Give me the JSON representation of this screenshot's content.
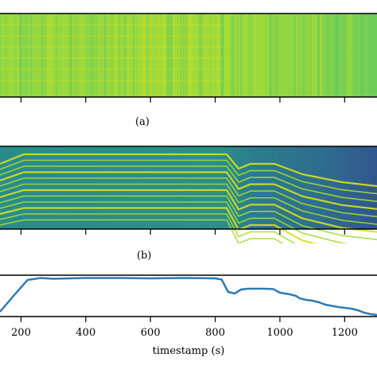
{
  "panels": [
    {
      "id": "a",
      "caption": "(a)",
      "type": "heatmap",
      "colormap": "viridis"
    },
    {
      "id": "b",
      "caption": "(b)",
      "type": "heatmap",
      "colormap": "viridis"
    }
  ],
  "chart_data": {
    "type": "line",
    "xlabel": "timestamp (s)",
    "xticks": [
      200,
      400,
      600,
      800,
      1000,
      1200
    ],
    "xlim": [
      135,
      1300
    ],
    "ylim": [
      0,
      1
    ],
    "color": "#2f7ab5",
    "x": [
      135,
      180,
      220,
      260,
      300,
      400,
      500,
      600,
      700,
      800,
      820,
      840,
      860,
      880,
      900,
      950,
      980,
      1000,
      1030,
      1050,
      1060,
      1080,
      1100,
      1120,
      1140,
      1160,
      1180,
      1200,
      1220,
      1240,
      1260,
      1280,
      1300
    ],
    "y": [
      0.12,
      0.55,
      0.92,
      0.97,
      0.95,
      0.97,
      0.97,
      0.96,
      0.97,
      0.96,
      0.93,
      0.62,
      0.58,
      0.68,
      0.7,
      0.7,
      0.69,
      0.6,
      0.56,
      0.52,
      0.46,
      0.42,
      0.4,
      0.36,
      0.3,
      0.27,
      0.24,
      0.22,
      0.2,
      0.16,
      0.1,
      0.06,
      0.04
    ]
  }
}
